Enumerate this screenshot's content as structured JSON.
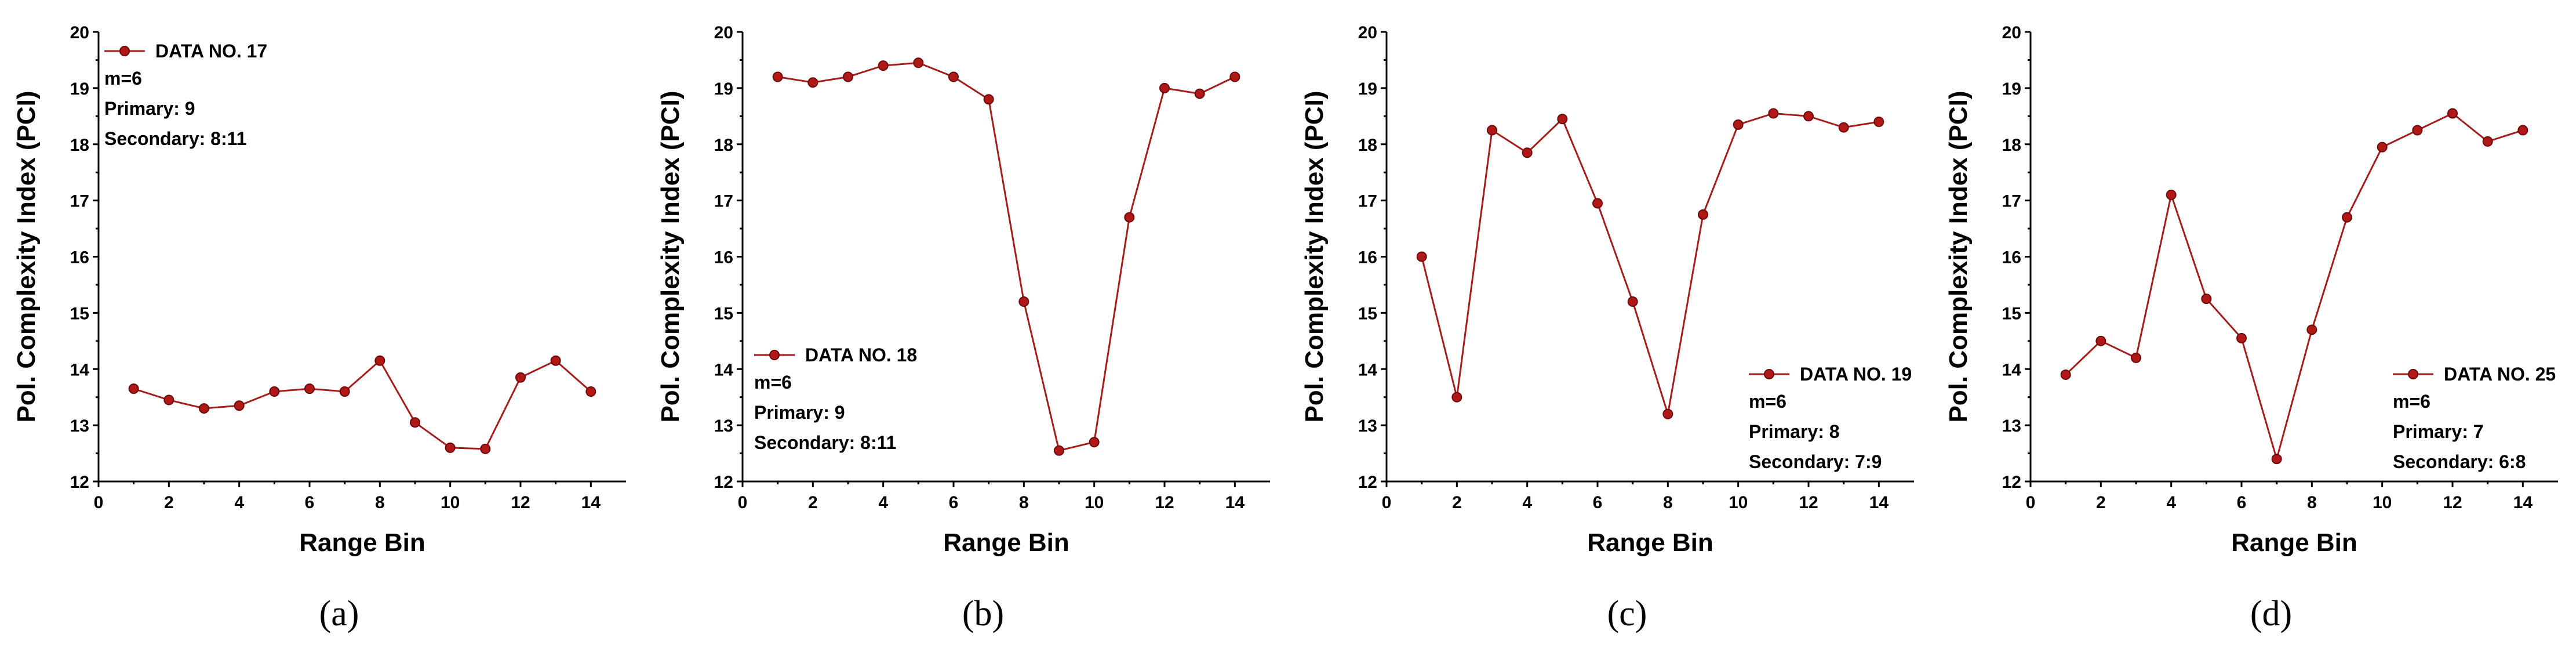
{
  "colors": {
    "series": "#a41d1d",
    "marker": "#b01818"
  },
  "chart_data": [
    {
      "type": "line",
      "panel_label": "(a)",
      "xlabel": "Range Bin",
      "ylabel": "Pol. Complexity Index (PCI)",
      "xlim": [
        0,
        15
      ],
      "ylim": [
        12,
        20
      ],
      "xticks": [
        0,
        2,
        4,
        6,
        8,
        10,
        12,
        14
      ],
      "yticks": [
        12,
        13,
        14,
        15,
        16,
        17,
        18,
        19,
        20
      ],
      "legend": {
        "position": "top-left",
        "series_name": "DATA NO. 17",
        "lines": [
          "m=6",
          "Primary: 9",
          "Secondary: 8:11"
        ]
      },
      "series": [
        {
          "name": "DATA NO. 17",
          "x": [
            1,
            2,
            3,
            4,
            5,
            6,
            7,
            8,
            9,
            10,
            11,
            12,
            13,
            14
          ],
          "values": [
            13.65,
            13.45,
            13.3,
            13.35,
            13.6,
            13.65,
            13.6,
            14.15,
            13.05,
            12.6,
            12.58,
            13.85,
            14.15,
            13.6
          ]
        }
      ]
    },
    {
      "type": "line",
      "panel_label": "(b)",
      "xlabel": "Range Bin",
      "ylabel": "Pol. Complexity Index (PCI)",
      "xlim": [
        0,
        15
      ],
      "ylim": [
        12,
        20
      ],
      "xticks": [
        0,
        2,
        4,
        6,
        8,
        10,
        12,
        14
      ],
      "yticks": [
        12,
        13,
        14,
        15,
        16,
        17,
        18,
        19,
        20
      ],
      "legend": {
        "position": "lower-left",
        "series_name": "DATA NO. 18",
        "lines": [
          "m=6",
          "Primary: 9",
          "Secondary: 8:11"
        ]
      },
      "series": [
        {
          "name": "DATA NO. 18",
          "x": [
            1,
            2,
            3,
            4,
            5,
            6,
            7,
            8,
            9,
            10,
            11,
            12,
            13,
            14
          ],
          "values": [
            19.2,
            19.1,
            19.2,
            19.4,
            19.45,
            19.2,
            18.8,
            15.2,
            12.55,
            12.7,
            16.7,
            19.0,
            18.9,
            19.2
          ]
        }
      ]
    },
    {
      "type": "line",
      "panel_label": "(c)",
      "xlabel": "Range Bin",
      "ylabel": "Pol. Complexity Index (PCI)",
      "xlim": [
        0,
        15
      ],
      "ylim": [
        12,
        20
      ],
      "xticks": [
        0,
        2,
        4,
        6,
        8,
        10,
        12,
        14
      ],
      "yticks": [
        12,
        13,
        14,
        15,
        16,
        17,
        18,
        19,
        20
      ],
      "legend": {
        "position": "lower-right",
        "series_name": "DATA NO. 19",
        "lines": [
          "m=6",
          "Primary: 8",
          "Secondary: 7:9"
        ]
      },
      "series": [
        {
          "name": "DATA NO. 19",
          "x": [
            1,
            2,
            3,
            4,
            5,
            6,
            7,
            8,
            9,
            10,
            11,
            12,
            13,
            14
          ],
          "values": [
            16.0,
            13.5,
            18.25,
            17.85,
            18.45,
            16.95,
            15.2,
            13.2,
            16.75,
            18.35,
            18.55,
            18.5,
            18.3,
            18.4
          ]
        }
      ]
    },
    {
      "type": "line",
      "panel_label": "(d)",
      "xlabel": "Range Bin",
      "ylabel": "Pol. Complexity Index (PCI)",
      "xlim": [
        0,
        15
      ],
      "ylim": [
        12,
        20
      ],
      "xticks": [
        0,
        2,
        4,
        6,
        8,
        10,
        12,
        14
      ],
      "yticks": [
        12,
        13,
        14,
        15,
        16,
        17,
        18,
        19,
        20
      ],
      "legend": {
        "position": "lower-right",
        "series_name": "DATA NO. 25",
        "lines": [
          "m=6",
          "Primary: 7",
          "Secondary: 6:8"
        ]
      },
      "series": [
        {
          "name": "DATA NO. 25",
          "x": [
            1,
            2,
            3,
            4,
            5,
            6,
            7,
            8,
            9,
            10,
            11,
            12,
            13,
            14
          ],
          "values": [
            13.9,
            14.5,
            14.2,
            17.1,
            15.25,
            14.55,
            12.4,
            14.7,
            16.7,
            17.95,
            18.25,
            18.55,
            18.05,
            18.25
          ]
        }
      ]
    }
  ]
}
